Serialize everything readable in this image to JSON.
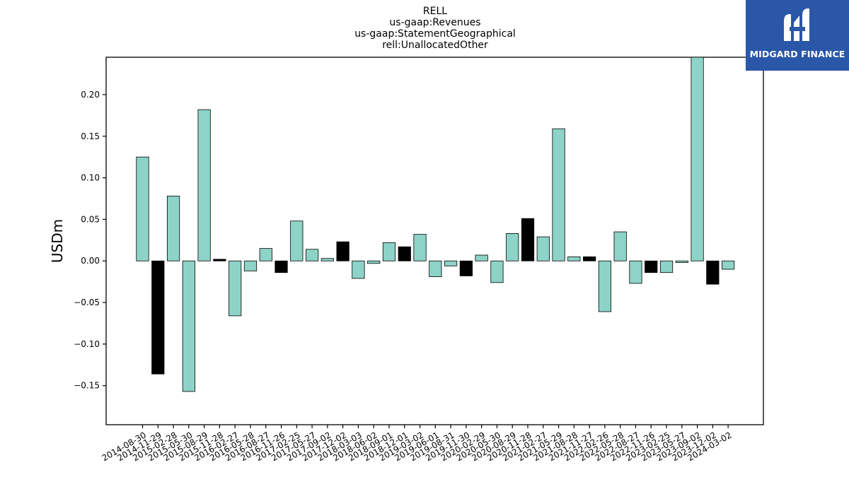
{
  "chart_data": {
    "type": "bar",
    "title_lines": [
      "RELL",
      "us-gaap:Revenues",
      "us-gaap:StatementGeographical",
      "rell:UnallocatedOther"
    ],
    "ylabel": "USDm",
    "xlabel": "",
    "ylim": [
      -0.197,
      0.245
    ],
    "yticks": [
      -0.15,
      -0.1,
      -0.05,
      0.0,
      0.05,
      0.1,
      0.15,
      0.2
    ],
    "ytick_labels": [
      "−0.15",
      "−0.10",
      "−0.05",
      "0.00",
      "0.05",
      "0.10",
      "0.15",
      "0.20"
    ],
    "categories": [
      "2014-08-30",
      "2014-11-29",
      "2015-02-28",
      "2015-05-30",
      "2015-08-29",
      "2015-11-28",
      "2016-02-27",
      "2016-05-28",
      "2016-08-27",
      "2016-11-26",
      "2017-02-25",
      "2017-05-27",
      "2017-09-02",
      "2017-12-02",
      "2018-03-03",
      "2018-06-02",
      "2018-09-01",
      "2018-12-01",
      "2019-03-02",
      "2019-06-01",
      "2019-08-31",
      "2019-11-30",
      "2020-02-29",
      "2020-05-30",
      "2020-08-29",
      "2020-11-28",
      "2021-02-27",
      "2021-05-29",
      "2021-08-28",
      "2021-11-27",
      "2022-02-26",
      "2022-05-28",
      "2022-08-27",
      "2022-11-26",
      "2023-02-25",
      "2023-05-27",
      "2023-09-02",
      "2023-12-02",
      "2024-03-02"
    ],
    "values": [
      0.125,
      -0.136,
      0.078,
      -0.157,
      0.182,
      0.002,
      -0.066,
      -0.012,
      0.015,
      -0.014,
      0.048,
      0.014,
      0.003,
      0.023,
      -0.021,
      -0.003,
      0.022,
      0.017,
      0.032,
      -0.019,
      -0.006,
      -0.018,
      0.007,
      -0.026,
      0.033,
      0.051,
      0.029,
      0.159,
      0.005,
      0.005,
      -0.061,
      0.035,
      -0.027,
      -0.014,
      -0.014,
      -0.002,
      0.245,
      -0.028,
      -0.01
    ],
    "highlighted": [
      false,
      true,
      false,
      false,
      false,
      true,
      false,
      false,
      false,
      true,
      false,
      false,
      false,
      true,
      false,
      false,
      false,
      true,
      false,
      false,
      false,
      true,
      false,
      false,
      false,
      true,
      false,
      false,
      false,
      true,
      false,
      false,
      false,
      true,
      false,
      false,
      false,
      true,
      false
    ],
    "colors": {
      "normal": "#8dd3c7",
      "highlight": "#000000",
      "edge": "#000000"
    },
    "grid": false,
    "legend": "none"
  },
  "logo": {
    "text": "MIDGARD FINANCE",
    "background": "#2a57a8"
  }
}
